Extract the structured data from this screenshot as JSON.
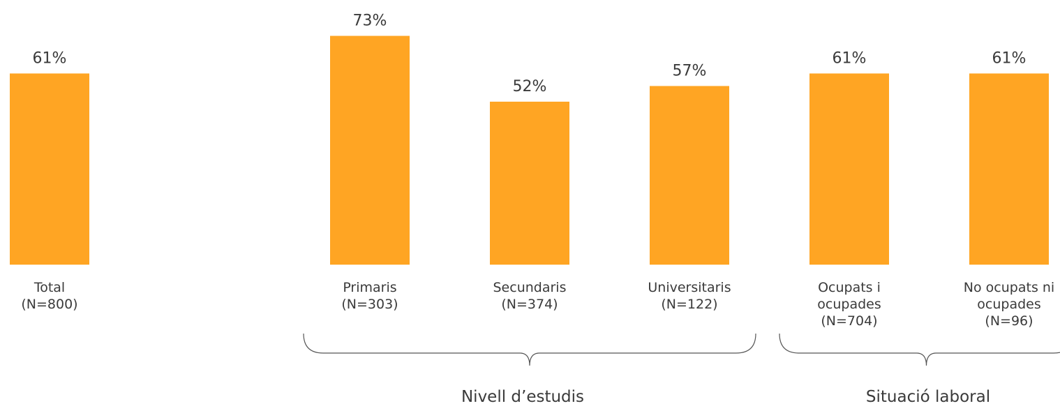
{
  "chart_data": {
    "type": "bar",
    "title": "",
    "xlabel": "",
    "ylabel": "",
    "ylim": [
      0,
      100
    ],
    "grid": false,
    "legend": "none",
    "bar_color": "#FFA523",
    "value_suffix": "%",
    "categories": [
      {
        "lines": [
          "Total",
          "(N=800)"
        ],
        "value": 61
      },
      {
        "lines": [
          "Primaris",
          "(N=303)"
        ],
        "value": 73
      },
      {
        "lines": [
          "Secundaris",
          "(N=374)"
        ],
        "value": 52
      },
      {
        "lines": [
          "Universitaris",
          "(N=122)"
        ],
        "value": 57
      },
      {
        "lines": [
          "Ocupats i",
          "ocupades",
          "(N=704)"
        ],
        "value": 61
      },
      {
        "lines": [
          "No ocupats ni",
          "ocupades",
          "(N=96)"
        ],
        "value": 61
      }
    ],
    "groups": [
      {
        "label": "Nivell d’estudis",
        "categories": [
          1,
          2,
          3
        ]
      },
      {
        "label": "Situació laboral",
        "categories": [
          4,
          5
        ]
      }
    ]
  }
}
